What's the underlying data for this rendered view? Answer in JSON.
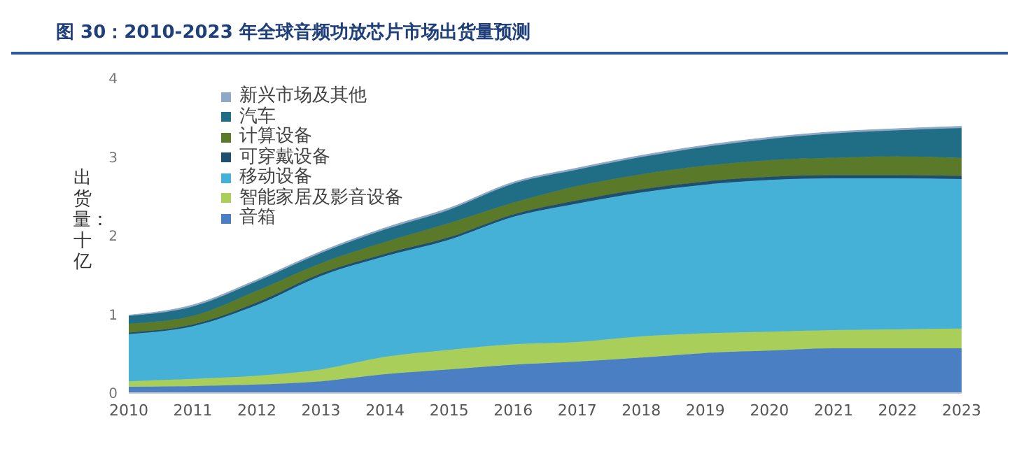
{
  "chart_data": {
    "type": "area",
    "stacked": true,
    "title": "图 30：2010-2023 年全球音频功放芯片市场出货量预测",
    "ylabel": "出货量：十亿",
    "x": [
      2010,
      2011,
      2012,
      2013,
      2014,
      2015,
      2016,
      2017,
      2018,
      2019,
      2020,
      2021,
      2022,
      2023
    ],
    "xlim": [
      2010,
      2023
    ],
    "xticks": [
      2010,
      2011,
      2012,
      2013,
      2014,
      2015,
      2016,
      2017,
      2018,
      2019,
      2020,
      2021,
      2022,
      2023
    ],
    "ylim": [
      0,
      4
    ],
    "yticks": [
      0,
      1,
      2,
      3,
      4
    ],
    "grid": false,
    "legend": "top left",
    "series": [
      {
        "name": "音箱",
        "color": "#4a7fc4",
        "values": [
          0.08,
          0.09,
          0.11,
          0.15,
          0.24,
          0.3,
          0.36,
          0.4,
          0.45,
          0.51,
          0.54,
          0.57,
          0.57,
          0.57
        ]
      },
      {
        "name": "智能家居及影音设备",
        "color": "#a9cf5a",
        "values": [
          0.07,
          0.09,
          0.11,
          0.15,
          0.22,
          0.25,
          0.26,
          0.25,
          0.27,
          0.25,
          0.24,
          0.23,
          0.24,
          0.25
        ]
      },
      {
        "name": "移动设备",
        "color": "#45b1d6",
        "values": [
          0.6,
          0.67,
          0.9,
          1.19,
          1.28,
          1.4,
          1.62,
          1.76,
          1.83,
          1.89,
          1.93,
          1.93,
          1.92,
          1.9
        ]
      },
      {
        "name": "可穿戴设备",
        "color": "#1f4e6e",
        "values": [
          0.02,
          0.02,
          0.03,
          0.03,
          0.03,
          0.03,
          0.03,
          0.04,
          0.04,
          0.04,
          0.04,
          0.04,
          0.04,
          0.04
        ]
      },
      {
        "name": "计算设备",
        "color": "#5a7a2a",
        "values": [
          0.11,
          0.11,
          0.15,
          0.13,
          0.15,
          0.18,
          0.15,
          0.18,
          0.19,
          0.2,
          0.21,
          0.22,
          0.24,
          0.23
        ]
      },
      {
        "name": "汽车",
        "color": "#1f6e86",
        "values": [
          0.1,
          0.12,
          0.12,
          0.13,
          0.16,
          0.17,
          0.24,
          0.21,
          0.22,
          0.24,
          0.27,
          0.31,
          0.33,
          0.38
        ]
      },
      {
        "name": "新兴市场及其他",
        "color": "#8fa8c8",
        "values": [
          0.01,
          0.02,
          0.02,
          0.02,
          0.02,
          0.02,
          0.02,
          0.02,
          0.02,
          0.02,
          0.02,
          0.02,
          0.02,
          0.02
        ]
      }
    ]
  }
}
